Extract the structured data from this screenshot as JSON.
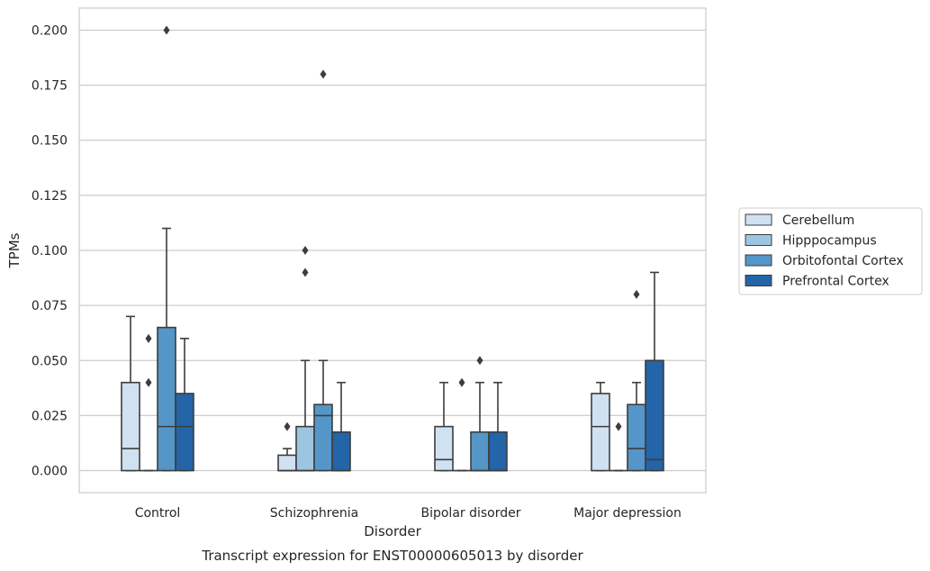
{
  "chart_data": {
    "type": "boxplot",
    "title": "Transcript expression for ENST00000605013 by disorder",
    "xlabel": "Disorder",
    "ylabel": "TPMs",
    "ylim": [
      -0.01,
      0.21
    ],
    "yticks": [
      0.0,
      0.025,
      0.05,
      0.075,
      0.1,
      0.125,
      0.15,
      0.175,
      0.2
    ],
    "ytick_labels": [
      "0.000",
      "0.025",
      "0.050",
      "0.075",
      "0.100",
      "0.125",
      "0.150",
      "0.175",
      "0.200"
    ],
    "grid": "horizontal",
    "legend_position": "right",
    "categories": [
      "Control",
      "Schizophrenia",
      "Bipolar disorder",
      "Major depression"
    ],
    "series": [
      {
        "name": "Cerebellum",
        "color": "#d0e1f2",
        "boxes": [
          {
            "q1": 0.0,
            "median": 0.01,
            "q3": 0.04,
            "whisker_low": 0.0,
            "whisker_high": 0.07,
            "outliers": []
          },
          {
            "q1": 0.0,
            "median": 0.0,
            "q3": 0.007,
            "whisker_low": 0.0,
            "whisker_high": 0.01,
            "outliers": [
              0.02
            ]
          },
          {
            "q1": 0.0,
            "median": 0.005,
            "q3": 0.02,
            "whisker_low": 0.0,
            "whisker_high": 0.04,
            "outliers": []
          },
          {
            "q1": 0.0,
            "median": 0.02,
            "q3": 0.035,
            "whisker_low": 0.0,
            "whisker_high": 0.04,
            "outliers": []
          }
        ]
      },
      {
        "name": "Hipppocampus",
        "color": "#9cc5e0",
        "boxes": [
          {
            "q1": 0.0,
            "median": 0.0,
            "q3": 0.0,
            "whisker_low": 0.0,
            "whisker_high": 0.0,
            "outliers": [
              0.04,
              0.06
            ]
          },
          {
            "q1": 0.0,
            "median": 0.0,
            "q3": 0.02,
            "whisker_low": 0.0,
            "whisker_high": 0.05,
            "outliers": [
              0.09,
              0.1
            ]
          },
          {
            "q1": 0.0,
            "median": 0.0,
            "q3": 0.0,
            "whisker_low": 0.0,
            "whisker_high": 0.0,
            "outliers": [
              0.04
            ]
          },
          {
            "q1": 0.0,
            "median": 0.0,
            "q3": 0.0,
            "whisker_low": 0.0,
            "whisker_high": 0.0,
            "outliers": [
              0.02
            ]
          }
        ]
      },
      {
        "name": "Orbitofontal Cortex",
        "color": "#5496c7",
        "boxes": [
          {
            "q1": 0.0,
            "median": 0.02,
            "q3": 0.065,
            "whisker_low": 0.0,
            "whisker_high": 0.11,
            "outliers": [
              0.2
            ]
          },
          {
            "q1": 0.0,
            "median": 0.025,
            "q3": 0.03,
            "whisker_low": 0.0,
            "whisker_high": 0.05,
            "outliers": [
              0.18
            ]
          },
          {
            "q1": 0.0,
            "median": 0.0,
            "q3": 0.0175,
            "whisker_low": 0.0,
            "whisker_high": 0.04,
            "outliers": [
              0.05
            ]
          },
          {
            "q1": 0.0,
            "median": 0.01,
            "q3": 0.03,
            "whisker_low": 0.0,
            "whisker_high": 0.04,
            "outliers": [
              0.08
            ]
          }
        ]
      },
      {
        "name": "Prefrontal Cortex",
        "color": "#2464a8",
        "boxes": [
          {
            "q1": 0.0,
            "median": 0.02,
            "q3": 0.035,
            "whisker_low": 0.0,
            "whisker_high": 0.06,
            "outliers": []
          },
          {
            "q1": 0.0,
            "median": 0.0,
            "q3": 0.0175,
            "whisker_low": 0.0,
            "whisker_high": 0.04,
            "outliers": []
          },
          {
            "q1": 0.0,
            "median": 0.0,
            "q3": 0.0175,
            "whisker_low": 0.0,
            "whisker_high": 0.04,
            "outliers": []
          },
          {
            "q1": 0.0,
            "median": 0.005,
            "q3": 0.05,
            "whisker_low": 0.0,
            "whisker_high": 0.09,
            "outliers": []
          }
        ]
      }
    ]
  }
}
